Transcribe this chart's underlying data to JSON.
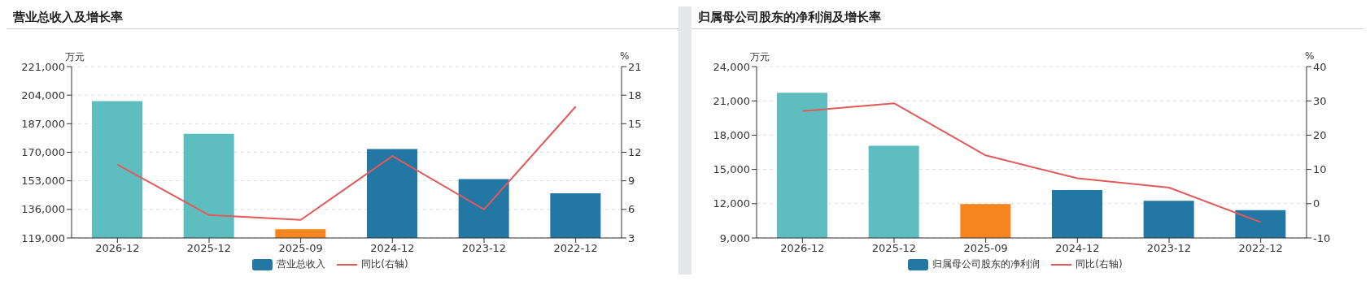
{
  "chart_data": [
    {
      "type": "bar",
      "title": "营业总收入及增长率",
      "ylabel": "万元",
      "y2label": "%",
      "categories": [
        "2026-12",
        "2025-12",
        "2025-09",
        "2024-12",
        "2023-12",
        "2022-12"
      ],
      "series": [
        {
          "name": "营业总收入",
          "color": "#2277a5",
          "colors": [
            "#5dbdbf",
            "#5dbdbf",
            "#f5861f",
            "#2277a5",
            "#2277a5",
            "#2277a5"
          ],
          "values": [
            200400,
            181000,
            124200,
            171900,
            154100,
            145600
          ]
        },
        {
          "name": "同比(右轴)",
          "type": "line",
          "axis": "y2",
          "color": "#e05a5a",
          "values": [
            10.7,
            5.4,
            4.9,
            11.6,
            6.0,
            16.8
          ]
        }
      ],
      "ylim": [
        119000,
        221000
      ],
      "yticks": [
        {
          "value": 119000,
          "label": "119,000"
        },
        {
          "value": 136000,
          "label": "136,000"
        },
        {
          "value": 153000,
          "label": "153,000"
        },
        {
          "value": 170000,
          "label": "170,000"
        },
        {
          "value": 187000,
          "label": "187,000"
        },
        {
          "value": 204000,
          "label": "204,000"
        },
        {
          "value": 221000,
          "label": "221,000"
        }
      ],
      "y2lim": [
        3,
        21
      ],
      "y2ticks": [
        3,
        6,
        9,
        12,
        15,
        18,
        21
      ],
      "grid": "y",
      "legend": "bottom"
    },
    {
      "type": "bar",
      "title": "归属母公司股东的净利润及增长率",
      "ylabel": "万元",
      "y2label": "%",
      "categories": [
        "2026-12",
        "2025-12",
        "2025-09",
        "2024-12",
        "2023-12",
        "2022-12"
      ],
      "series": [
        {
          "name": "归属母公司股东的净利润",
          "color": "#2277a5",
          "colors": [
            "#5dbdbf",
            "#5dbdbf",
            "#f5861f",
            "#2277a5",
            "#2277a5",
            "#2277a5"
          ],
          "values": [
            21700,
            17060,
            11960,
            13200,
            12260,
            11440
          ]
        },
        {
          "name": "同比(右轴)",
          "type": "line",
          "axis": "y2",
          "color": "#e05a5a",
          "values": [
            27.0,
            29.3,
            14.1,
            7.4,
            4.7,
            -5.4
          ]
        }
      ],
      "ylim": [
        9000,
        24000
      ],
      "yticks": [
        {
          "value": 9000,
          "label": "9,000"
        },
        {
          "value": 12000,
          "label": "12,000"
        },
        {
          "value": 15000,
          "label": "15,000"
        },
        {
          "value": 18000,
          "label": "18,000"
        },
        {
          "value": 21000,
          "label": "21,000"
        },
        {
          "value": 24000,
          "label": "24,000"
        }
      ],
      "y2lim": [
        -10,
        40
      ],
      "y2ticks": [
        -10,
        0,
        10,
        20,
        30,
        40
      ],
      "grid": "y",
      "legend": "bottom"
    }
  ]
}
